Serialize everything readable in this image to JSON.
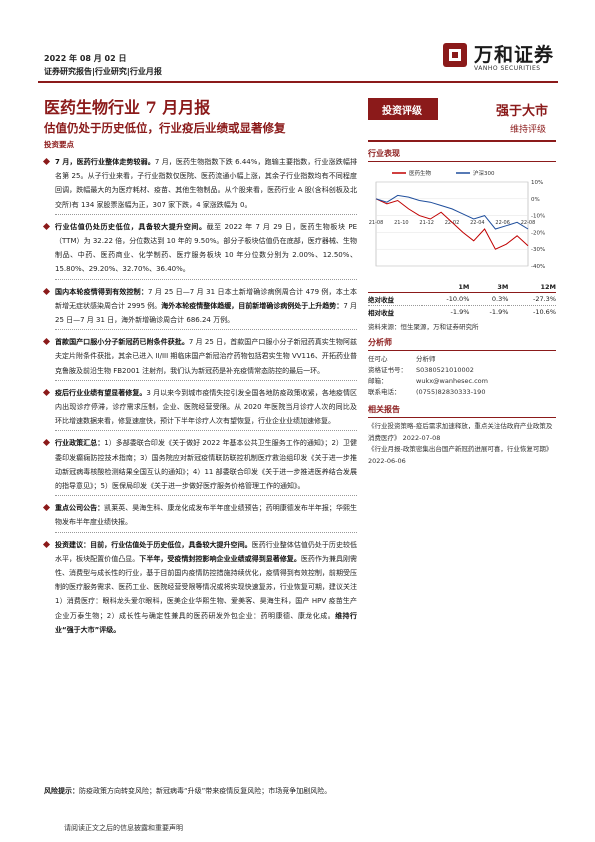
{
  "header": {
    "date": "2022 年 08 月 02 日",
    "category": "证券研究报告|行业研究|行业月报",
    "logo_cn": "万和证券",
    "logo_en": "VANHO SECURITIES"
  },
  "title": "医药生物行业 7 月月报",
  "subtitle": "估值仍处于历史低位，行业疫后业绩或显著修复",
  "section_label": "投资要点",
  "paragraphs": [
    {
      "lead": "7 月，医药行业整体走势较弱。",
      "text": "7 月，医药生物指数下跌 6.44%，跑输主要指数，行业涨跌幅排名第 25。从子行业来看，子行业指数仅医院、医药流通小幅上涨，其余子行业指数均有不同程度回调，跌幅最大的为医疗耗材、疫苗、其他生物制品。从个股来看，医药行业 A 股(含科创板及北交所)有 134 家股票涨幅为正，307 家下跌，4 家涨跌幅为 0。"
    },
    {
      "lead": "行业估值仍处历史低位，具备较大提升空间。",
      "text": "截至 2022 年 7 月 29 日，医药生物板块 PE（TTM）为 32.22 倍，分位数达到 10 年的 9.50%。部分子板块估值仍在底部，医疗器械、生物制品、中药、医药商业、化学制药、医疗服务板块 10 年分位数分别为 2.00%、12.50%、15.80%、29.20%、32.70%、36.40%。"
    },
    {
      "lead": "国内本轮疫情得到有效控制：",
      "text": "7 月 25 日—7 月 31 日本土新增确诊病例周合计 479 例，本土本新增无症状感染周合计 2995 例。",
      "lead2": "海外本轮疫情整体趋缓，目前新增确诊病例处于上升趋势：",
      "text2": "7 月 25 日—7 月 31 日，海外新增确诊周合计 686.24 万例。"
    },
    {
      "lead": "首款国产口服小分子新冠药已附条件获批。",
      "text": "7 月 25 日，首款国产口服小分子新冠药真实生物阿兹夫定片附条件获批，其余已进入 II/III 期临床国产新冠治疗药物包括君实生物 VV116、开拓药业普克鲁胺及前沿生物 FB2001 注射剂，我们认为新冠药是补充疫情常态防控的最后一环。"
    },
    {
      "lead": "疫后行业业绩有望显著修复。",
      "text": "3 月以来今到城市疫情失控引发全国各地防疫政策收紧，各地疫情区内出现诊疗停滞，诊疗需求压制，企业、医院经营受限。从 2020 年医院当月诊疗人次的同比及环比增速数据来看，修复速度快，预计下半年诊疗人次有望恢复，行业企业业绩加速修复。"
    },
    {
      "lead": "行业政策汇总：",
      "text": "1）多部委联合印发《关于做好 2022 年基本公共卫生服务工作的通知》；2）卫健委印发癫痫防控技术指南；3）国务院应对新冠疫情联防联控机制医疗救治组印发《关于进一步推动新冠病毒核酸检测结果全国互认的通知》；4）11 部委联合印发《关于进一步推进医养结合发展的指导意见》；5）医保局印发《关于进一步做好医疗服务价格管理工作的通知》。"
    },
    {
      "lead": "重点公司公告：",
      "text": "凯莱英、昊海生科、康龙化成发布半年度业绩预告；药明康德发布半年报；华熙生物发布半年度业绩快报。"
    },
    {
      "lead": "投资建议：目前，行业估值处于历史低位，具备较大提升空间。",
      "text": "医药行业整体估值仍处于历史较低水平，板块配置价值凸显。",
      "lead2": "下半年，受疫情封控影响企业业绩或得到显著修复。",
      "text2": "医药作为兼具刚需性、消费型与成长性的行业，基于目前国内疫情防控措施持续优化，疫情得到有效控制，前期受压制的医疗服务需求、医药工业、医院经营受限等情况或将实现快速复苏，行业恢复可期，建议关注 1）消费医疗：眼科龙头爱尔眼科，医美企业华熙生物、爱美客、昊海生科，国产 HPV 疫苗生产企业万泰生物；2）成长性与确定性兼具的医药研发外包企业：药明康德、康龙化成。",
      "lead3": "维持行业“强于大市”评级。"
    }
  ],
  "risk": {
    "lead": "风险提示：",
    "text": "防疫政策方向转变风险；新冠病毒“升级”带来疫情反复风险；市场竞争加剧风险。"
  },
  "footer": "请阅读正文之后的信息披露和重要声明",
  "sidebar": {
    "rating_tag": "投资评级",
    "rating_value": "强于大市",
    "rating_sub": "维持评级",
    "perf_heading": "行业表现",
    "perf_columns": [
      "1M",
      "3M",
      "12M"
    ],
    "perf_rows": [
      {
        "label": "绝对收益",
        "values": [
          "-10.0%",
          "0.3%",
          "-27.3%"
        ]
      },
      {
        "label": "相对收益",
        "values": [
          "-1.9%",
          "-1.9%",
          "-10.6%"
        ]
      }
    ],
    "source": "资料来源：恒生聚源，万和证券研究所",
    "analyst_heading": "分析师",
    "analyst": [
      {
        "key": "任可心",
        "value": "分析师"
      },
      {
        "key": "资格证书号：",
        "value": "S0380521010002"
      },
      {
        "key": "邮箱：",
        "value": "wukx@wanhesec.com"
      },
      {
        "key": "联系电话：",
        "value": "(0755)82830333-190"
      }
    ],
    "related_heading": "相关报告",
    "related": [
      "《行业投资策略-疫后需求加速释放，重点关注估政府产业政策及消费医疗》 2022-07-08",
      "《行业月报-政策密集出台国产新冠药进展可喜，行业恢复可期》 2022-06-06"
    ]
  },
  "chart_data": {
    "type": "line",
    "legend": [
      "医药生物",
      "沪深300"
    ],
    "x_ticks": [
      "21-08",
      "21-10",
      "21-12",
      "22-02",
      "22-04",
      "22-06",
      "22-08"
    ],
    "ylim": [
      -40,
      10
    ],
    "y_ticks": [
      "10%",
      "0%",
      "-10%",
      "-20%",
      "-30%",
      "-40%"
    ],
    "colors": [
      "#c00000",
      "#1f4e9c"
    ],
    "series": [
      {
        "name": "医药生物",
        "values": [
          0,
          -3,
          -1,
          -6,
          -10,
          -12,
          -8,
          -14,
          -20,
          -25,
          -18,
          -30,
          -27,
          -22,
          -28
        ]
      },
      {
        "name": "沪深300",
        "values": [
          0,
          -2,
          2,
          1,
          -1,
          -2,
          -4,
          -6,
          -9,
          -12,
          -10,
          -18,
          -16,
          -14,
          -18
        ]
      }
    ]
  }
}
